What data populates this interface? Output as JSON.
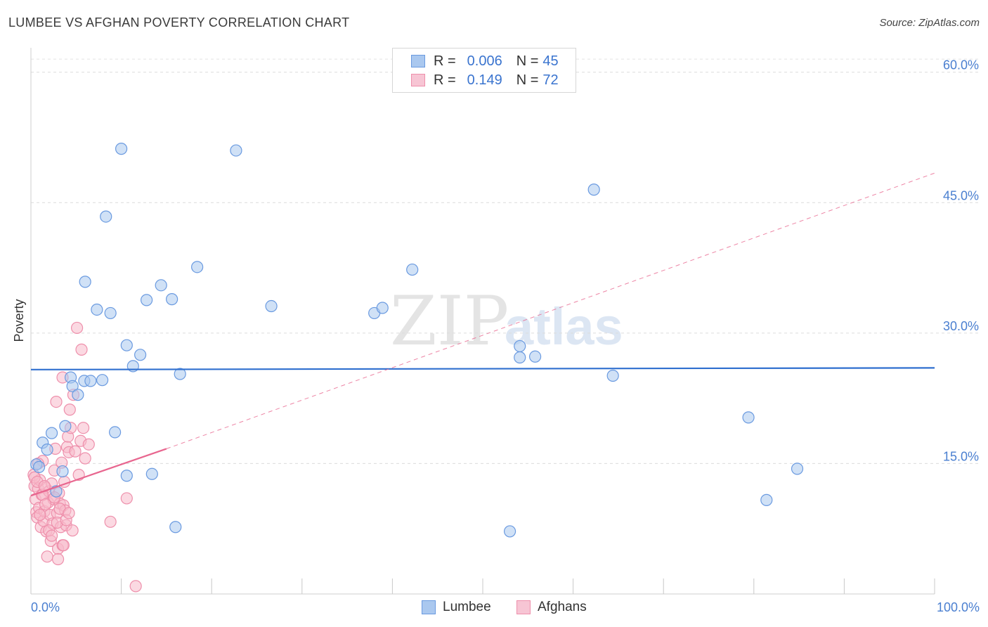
{
  "title": "LUMBEE VS AFGHAN POVERTY CORRELATION CHART",
  "source": "Source: ZipAtlas.com",
  "legend": {
    "rows": [
      {
        "r_label": "R =",
        "r_value": "0.006",
        "n_label": "N =",
        "n_value": "45"
      },
      {
        "r_label": "R =",
        "r_value": "0.149",
        "n_label": "N =",
        "n_value": "72"
      }
    ]
  },
  "bottom_legend": [
    "Lumbee",
    "Afghans"
  ],
  "watermark": {
    "zip": "ZIP",
    "atlas": "atlas"
  },
  "colors": {
    "lumbee_fill": "#aac8ef",
    "lumbee_stroke": "#6a9ae0",
    "lumbee_line": "#2f6fcf",
    "afghan_fill": "#f7b9cb",
    "afghan_stroke": "#ee8fab",
    "afghan_line": "#e8668f",
    "tick_text": "#4a7fd0"
  },
  "chart_data": {
    "type": "scatter",
    "title": "LUMBEE VS AFGHAN POVERTY CORRELATION CHART",
    "xlabel": "",
    "ylabel": "Poverty",
    "xlim": [
      0,
      100
    ],
    "ylim": [
      0,
      62
    ],
    "x_tick_labels": [
      "0.0%",
      "100.0%"
    ],
    "y_ticks": [
      15,
      30,
      45,
      60
    ],
    "y_tick_labels": [
      "15.0%",
      "30.0%",
      "45.0%",
      "60.0%"
    ],
    "grid": "horizontal dashed",
    "legend_position": "top-center",
    "series": [
      {
        "name": "Lumbee",
        "r": 0.006,
        "n": 45,
        "trend": {
          "x": [
            0,
            100
          ],
          "y": [
            25.8,
            26.0
          ],
          "style": "solid"
        },
        "points": [
          [
            0.6,
            14.9
          ],
          [
            0.9,
            14.6
          ],
          [
            1.3,
            17.4
          ],
          [
            1.8,
            16.6
          ],
          [
            2.3,
            18.5
          ],
          [
            2.8,
            11.8
          ],
          [
            3.5,
            14.1
          ],
          [
            3.8,
            19.3
          ],
          [
            4.4,
            24.9
          ],
          [
            4.6,
            23.9
          ],
          [
            5.2,
            22.9
          ],
          [
            5.9,
            24.5
          ],
          [
            6.0,
            35.9
          ],
          [
            6.6,
            24.5
          ],
          [
            7.3,
            32.7
          ],
          [
            7.9,
            24.6
          ],
          [
            8.3,
            43.4
          ],
          [
            8.8,
            32.3
          ],
          [
            9.3,
            18.6
          ],
          [
            10.0,
            51.2
          ],
          [
            10.6,
            28.6
          ],
          [
            10.6,
            13.6
          ],
          [
            11.3,
            26.2
          ],
          [
            12.1,
            27.5
          ],
          [
            12.8,
            33.8
          ],
          [
            13.4,
            13.8
          ],
          [
            14.4,
            35.5
          ],
          [
            15.6,
            33.9
          ],
          [
            16.0,
            7.7
          ],
          [
            16.5,
            25.3
          ],
          [
            18.4,
            37.6
          ],
          [
            22.7,
            51.0
          ],
          [
            26.6,
            33.1
          ],
          [
            38.0,
            32.3
          ],
          [
            38.9,
            32.9
          ],
          [
            42.2,
            37.3
          ],
          [
            53.0,
            7.2
          ],
          [
            54.1,
            27.2
          ],
          [
            54.1,
            28.5
          ],
          [
            55.8,
            27.3
          ],
          [
            62.3,
            46.5
          ],
          [
            64.4,
            25.1
          ],
          [
            79.4,
            20.3
          ],
          [
            81.4,
            10.8
          ],
          [
            84.8,
            14.4
          ]
        ]
      },
      {
        "name": "Afghans",
        "r": 0.149,
        "n": 72,
        "trend": {
          "solid_x": [
            0,
            15
          ],
          "solid_y": [
            11.3,
            16.7
          ],
          "dashed_x": [
            15,
            100
          ],
          "dashed_y": [
            16.7,
            48.4
          ]
        },
        "points": [
          [
            0.3,
            13.7
          ],
          [
            0.4,
            12.4
          ],
          [
            0.5,
            10.9
          ],
          [
            0.6,
            9.4
          ],
          [
            0.7,
            8.8
          ],
          [
            0.8,
            12.1
          ],
          [
            0.9,
            9.9
          ],
          [
            1.0,
            13.1
          ],
          [
            1.1,
            7.7
          ],
          [
            1.2,
            11.4
          ],
          [
            1.3,
            15.3
          ],
          [
            1.4,
            8.4
          ],
          [
            1.5,
            9.5
          ],
          [
            1.6,
            12.2
          ],
          [
            1.7,
            7.2
          ],
          [
            1.8,
            4.3
          ],
          [
            1.9,
            10.5
          ],
          [
            2.0,
            11.8
          ],
          [
            2.1,
            9.1
          ],
          [
            2.2,
            6.1
          ],
          [
            2.3,
            12.7
          ],
          [
            2.4,
            8.1
          ],
          [
            2.5,
            10.9
          ],
          [
            2.6,
            14.2
          ],
          [
            2.7,
            16.7
          ],
          [
            2.8,
            22.1
          ],
          [
            2.9,
            9.3
          ],
          [
            3.0,
            5.2
          ],
          [
            3.0,
            4.0
          ],
          [
            3.1,
            11.6
          ],
          [
            3.2,
            10.4
          ],
          [
            3.3,
            7.7
          ],
          [
            3.4,
            15.1
          ],
          [
            3.5,
            5.6
          ],
          [
            3.5,
            24.9
          ],
          [
            3.6,
            10.2
          ],
          [
            3.7,
            12.9
          ],
          [
            3.8,
            9.6
          ],
          [
            3.9,
            7.9
          ],
          [
            4.0,
            16.9
          ],
          [
            4.1,
            18.1
          ],
          [
            4.2,
            16.3
          ],
          [
            4.3,
            21.2
          ],
          [
            4.4,
            19.1
          ],
          [
            4.6,
            7.3
          ],
          [
            4.7,
            22.9
          ],
          [
            4.9,
            16.4
          ],
          [
            5.1,
            30.6
          ],
          [
            5.3,
            13.7
          ],
          [
            5.5,
            17.6
          ],
          [
            5.6,
            28.1
          ],
          [
            5.8,
            19.1
          ],
          [
            6.0,
            15.6
          ],
          [
            6.4,
            17.2
          ],
          [
            0.4,
            13.4
          ],
          [
            0.7,
            12.9
          ],
          [
            1.0,
            9.1
          ],
          [
            1.3,
            11.4
          ],
          [
            1.6,
            10.3
          ],
          [
            2.0,
            7.3
          ],
          [
            2.3,
            6.7
          ],
          [
            2.6,
            11.1
          ],
          [
            2.9,
            8.2
          ],
          [
            3.2,
            9.8
          ],
          [
            3.6,
            5.6
          ],
          [
            3.9,
            8.5
          ],
          [
            4.2,
            9.3
          ],
          [
            8.8,
            8.3
          ],
          [
            10.6,
            11.0
          ],
          [
            11.6,
            0.9
          ],
          [
            0.8,
            15.0
          ],
          [
            1.5,
            12.4
          ]
        ]
      }
    ]
  }
}
